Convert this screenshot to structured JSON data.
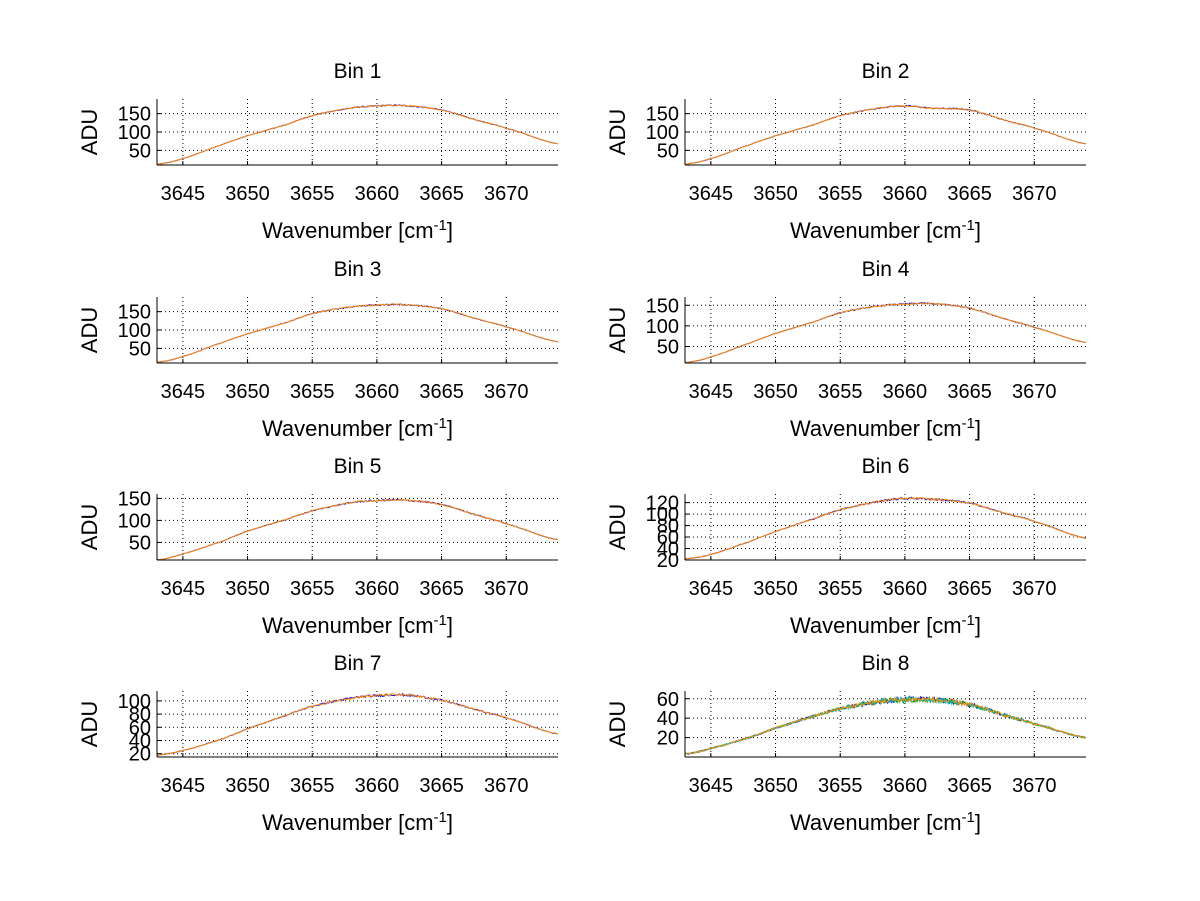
{
  "chart_data": [
    {
      "type": "line",
      "title": "Bin 1",
      "xlabel": "Wavenumber [cm",
      "xlabel_sup": "-1",
      "xlabel_close": "]",
      "ylabel": "ADU",
      "xlim": [
        3643,
        3674
      ],
      "ylim": [
        10,
        190
      ],
      "x_ticks": [
        3645,
        3650,
        3655,
        3660,
        3665,
        3670
      ],
      "y_ticks": [
        50,
        100,
        150
      ],
      "x": [
        3643,
        3645,
        3648,
        3650,
        3653,
        3655,
        3658,
        3660,
        3662,
        3665,
        3668,
        3670,
        3674
      ],
      "series": [
        {
          "values": [
            12,
            28,
            65,
            90,
            120,
            145,
            165,
            171,
            172,
            160,
            130,
            110,
            68
          ]
        }
      ],
      "grid": true
    },
    {
      "type": "line",
      "title": "Bin 2",
      "xlabel": "Wavenumber [cm",
      "xlabel_sup": "-1",
      "xlabel_close": "]",
      "ylabel": "ADU",
      "xlim": [
        3643,
        3674
      ],
      "ylim": [
        10,
        190
      ],
      "x_ticks": [
        3645,
        3650,
        3655,
        3660,
        3665,
        3670
      ],
      "y_ticks": [
        50,
        100,
        150
      ],
      "x": [
        3643,
        3645,
        3648,
        3650,
        3653,
        3655,
        3658,
        3660,
        3662,
        3665,
        3668,
        3670,
        3674
      ],
      "series": [
        {
          "values": [
            12,
            28,
            65,
            90,
            120,
            145,
            165,
            171,
            165,
            160,
            130,
            110,
            68
          ]
        }
      ],
      "grid": true
    },
    {
      "type": "line",
      "title": "Bin 3",
      "xlabel": "Wavenumber [cm",
      "xlabel_sup": "-1",
      "xlabel_close": "]",
      "ylabel": "ADU",
      "xlim": [
        3643,
        3674
      ],
      "ylim": [
        10,
        190
      ],
      "x_ticks": [
        3645,
        3650,
        3655,
        3660,
        3665,
        3670
      ],
      "y_ticks": [
        50,
        100,
        150
      ],
      "x": [
        3643,
        3645,
        3648,
        3650,
        3653,
        3655,
        3658,
        3660,
        3662,
        3665,
        3668,
        3670,
        3674
      ],
      "series": [
        {
          "values": [
            12,
            28,
            65,
            90,
            120,
            145,
            163,
            168,
            169,
            158,
            128,
            108,
            68
          ]
        }
      ],
      "grid": true
    },
    {
      "type": "line",
      "title": "Bin 4",
      "xlabel": "Wavenumber [cm",
      "xlabel_sup": "-1",
      "xlabel_close": "]",
      "ylabel": "ADU",
      "xlim": [
        3643,
        3674
      ],
      "ylim": [
        10,
        170
      ],
      "x_ticks": [
        3645,
        3650,
        3655,
        3660,
        3665,
        3670
      ],
      "y_ticks": [
        50,
        100,
        150
      ],
      "x": [
        3643,
        3645,
        3648,
        3650,
        3653,
        3655,
        3658,
        3660,
        3662,
        3665,
        3668,
        3670,
        3674
      ],
      "series": [
        {
          "values": [
            11,
            25,
            58,
            82,
            110,
            132,
            148,
            153,
            154,
            143,
            115,
            96,
            60
          ]
        }
      ],
      "grid": true
    },
    {
      "type": "line",
      "title": "Bin 5",
      "xlabel": "Wavenumber [cm",
      "xlabel_sup": "-1",
      "xlabel_close": "]",
      "ylabel": "ADU",
      "xlim": [
        3643,
        3674
      ],
      "ylim": [
        10,
        160
      ],
      "x_ticks": [
        3645,
        3650,
        3655,
        3660,
        3665,
        3670
      ],
      "y_ticks": [
        50,
        100,
        150
      ],
      "x": [
        3643,
        3645,
        3648,
        3650,
        3653,
        3655,
        3658,
        3660,
        3662,
        3665,
        3668,
        3670,
        3674
      ],
      "series": [
        {
          "values": [
            10,
            24,
            52,
            76,
            102,
            122,
            140,
            145,
            146,
            136,
            110,
            92,
            56
          ]
        }
      ],
      "grid": true
    },
    {
      "type": "line",
      "title": "Bin 6",
      "xlabel": "Wavenumber [cm",
      "xlabel_sup": "-1",
      "xlabel_close": "]",
      "ylabel": "ADU",
      "xlim": [
        3643,
        3674
      ],
      "ylim": [
        20,
        135
      ],
      "x_ticks": [
        3645,
        3650,
        3655,
        3660,
        3665,
        3670
      ],
      "y_ticks": [
        20,
        40,
        60,
        80,
        100,
        120
      ],
      "y_tick_labels": [
        "20",
        "40",
        "60",
        "80",
        "100",
        "120"
      ],
      "x": [
        3643,
        3645,
        3648,
        3650,
        3653,
        3655,
        3658,
        3660,
        3662,
        3665,
        3668,
        3670,
        3674
      ],
      "series": [
        {
          "values": [
            22,
            30,
            52,
            70,
            92,
            108,
            122,
            127,
            126,
            119,
            100,
            87,
            58
          ]
        }
      ],
      "grid": true
    },
    {
      "type": "line",
      "title": "Bin 7",
      "xlabel": "Wavenumber [cm",
      "xlabel_sup": "-1",
      "xlabel_close": "]",
      "ylabel": "ADU",
      "xlim": [
        3643,
        3674
      ],
      "ylim": [
        15,
        115
      ],
      "x_ticks": [
        3645,
        3650,
        3655,
        3660,
        3665,
        3670
      ],
      "y_ticks": [
        20,
        40,
        60,
        80,
        100
      ],
      "y_tick_labels": [
        "20",
        "40",
        "60",
        "80",
        "100"
      ],
      "x": [
        3643,
        3645,
        3648,
        3650,
        3653,
        3655,
        3658,
        3660,
        3662,
        3665,
        3668,
        3670,
        3674
      ],
      "series": [
        {
          "values": [
            18,
            25,
            42,
            58,
            78,
            92,
            104,
            108,
            109,
            101,
            85,
            74,
            50
          ]
        }
      ],
      "grid": true
    },
    {
      "type": "line",
      "title": "Bin 8",
      "xlabel": "Wavenumber [cm",
      "xlabel_sup": "-1",
      "xlabel_close": "]",
      "ylabel": "ADU",
      "xlim": [
        3643,
        3674
      ],
      "ylim": [
        0,
        68
      ],
      "x_ticks": [
        3645,
        3650,
        3655,
        3660,
        3665,
        3670
      ],
      "y_ticks": [
        20,
        40,
        60
      ],
      "x": [
        3643,
        3645,
        3648,
        3650,
        3653,
        3655,
        3658,
        3660,
        3662,
        3665,
        3668,
        3670,
        3674
      ],
      "series": [
        {
          "values": [
            3,
            9,
            20,
            30,
            42,
            50,
            57,
            59,
            59,
            54,
            42,
            34,
            20
          ]
        }
      ],
      "grid": true,
      "multi_color": true
    }
  ],
  "colors": {
    "series": [
      "#0000ff",
      "#00aa00",
      "#00bfbf",
      "#ff8c00"
    ],
    "grid": "#000000",
    "axis": "#000000"
  }
}
